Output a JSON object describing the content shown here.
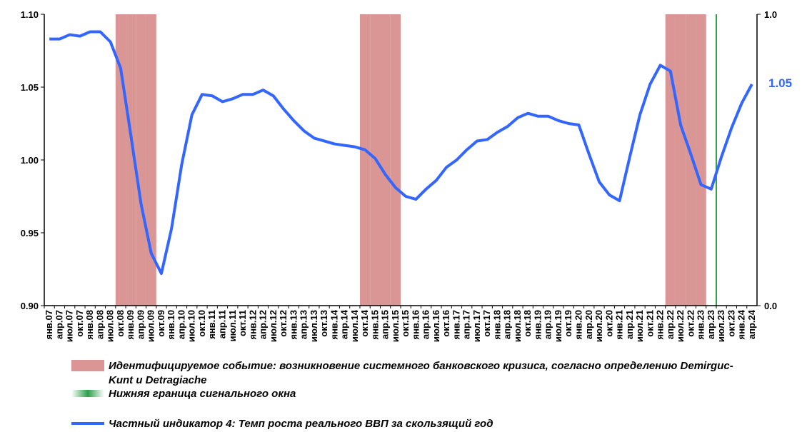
{
  "chart_data": {
    "type": "line",
    "categories": [
      "янв.07",
      "апр.07",
      "июл.07",
      "окт.07",
      "янв.08",
      "апр.08",
      "июл.08",
      "окт.08",
      "янв.09",
      "апр.09",
      "июл.09",
      "окт.09",
      "янв.10",
      "апр.10",
      "июл.10",
      "окт.10",
      "янв.11",
      "апр.11",
      "июл.11",
      "окт.11",
      "янв.12",
      "апр.12",
      "июл.12",
      "окт.12",
      "янв.13",
      "апр.13",
      "июл.13",
      "окт.13",
      "янв.14",
      "апр.14",
      "июл.14",
      "окт.14",
      "янв.15",
      "апр.15",
      "июл.15",
      "окт.15",
      "янв.16",
      "апр.16",
      "июл.16",
      "окт.16",
      "янв.17",
      "апр.17",
      "июл.17",
      "окт.17",
      "янв.18",
      "апр.18",
      "июл.18",
      "окт.18",
      "янв.19",
      "апр.19",
      "июл.19",
      "окт.19",
      "янв.20",
      "апр.20",
      "июл.20",
      "окт.20",
      "янв.21",
      "апр.21",
      "июл.21",
      "окт.21",
      "янв.22",
      "апр.22",
      "июл.22",
      "окт.22",
      "янв.23",
      "апр.23",
      "июл.23",
      "окт.23",
      "янв.24",
      "апр.24"
    ],
    "series": [
      {
        "name": "Идентифицируемое событие: возникновение системного банковского кризиса, согласно определению Demirguc-Kunt и Detragiache",
        "type": "bar",
        "axis": "y2",
        "color": "#d99694",
        "values": [
          0,
          0,
          0,
          0,
          0,
          0,
          0,
          1,
          1,
          1,
          1,
          0,
          0,
          0,
          0,
          0,
          0,
          0,
          0,
          0,
          0,
          0,
          0,
          0,
          0,
          0,
          0,
          0,
          0,
          0,
          0,
          1,
          1,
          1,
          1,
          0,
          0,
          0,
          0,
          0,
          0,
          0,
          0,
          0,
          0,
          0,
          0,
          0,
          0,
          0,
          0,
          0,
          0,
          0,
          0,
          0,
          0,
          0,
          0,
          0,
          0,
          1,
          1,
          1,
          1,
          0,
          0,
          0,
          0,
          0
        ]
      },
      {
        "name": "Нижняя граница сигнального окна",
        "type": "bar",
        "axis": "y2",
        "color": "#2e9e4a",
        "values": [
          0,
          0,
          0,
          0,
          0,
          0,
          0,
          0,
          0,
          0,
          0,
          0,
          0,
          0,
          0,
          0,
          0,
          0,
          0,
          0,
          0,
          0,
          0,
          0,
          0,
          0,
          0,
          0,
          0,
          0,
          0,
          0,
          0,
          0,
          0,
          0,
          0,
          0,
          0,
          0,
          0,
          0,
          0,
          0,
          0,
          0,
          0,
          0,
          0,
          0,
          0,
          0,
          0,
          0,
          0,
          0,
          0,
          0,
          0,
          0,
          0,
          0,
          0,
          0,
          0,
          0,
          1,
          0,
          0,
          0
        ]
      },
      {
        "name": "Частный индикатор 4: Темп роста реального ВВП за скользящий год",
        "type": "line",
        "color": "#3366ff",
        "values": [
          1.083,
          1.083,
          1.086,
          1.085,
          1.088,
          1.088,
          1.081,
          1.063,
          1.017,
          0.97,
          0.936,
          0.922,
          0.953,
          0.997,
          1.031,
          1.045,
          1.044,
          1.04,
          1.042,
          1.045,
          1.045,
          1.048,
          1.044,
          1.035,
          1.027,
          1.02,
          1.015,
          1.013,
          1.011,
          1.01,
          1.009,
          1.007,
          1.001,
          0.99,
          0.981,
          0.975,
          0.973,
          0.98,
          0.986,
          0.995,
          1.0,
          1.007,
          1.013,
          1.014,
          1.019,
          1.023,
          1.029,
          1.032,
          1.03,
          1.03,
          1.027,
          1.025,
          1.024,
          1.004,
          0.985,
          0.976,
          0.972,
          1.002,
          1.031,
          1.052,
          1.065,
          1.061,
          1.024,
          1.004,
          0.983,
          0.98,
          1.002,
          1.022,
          1.039,
          1.052
        ],
        "value_labels": [
          null,
          null,
          null,
          null,
          null,
          null,
          null,
          null,
          null,
          null,
          null,
          null,
          null,
          null,
          null,
          null,
          null,
          null,
          null,
          null,
          null,
          null,
          null,
          null,
          null,
          null,
          null,
          null,
          null,
          null,
          null,
          null,
          null,
          null,
          null,
          null,
          null,
          null,
          null,
          null,
          null,
          null,
          null,
          null,
          null,
          null,
          null,
          null,
          null,
          null,
          null,
          null,
          null,
          null,
          null,
          null,
          null,
          null,
          null,
          null,
          null,
          null,
          null,
          null,
          null,
          null,
          null,
          null,
          null,
          "1.05"
        ]
      }
    ],
    "ylim": [
      0.9,
      1.1
    ],
    "yticks": [
      {
        "value": 0.9,
        "label": "0.90"
      },
      {
        "value": 0.95,
        "label": "0.95"
      },
      {
        "value": 1.0,
        "label": "1.00"
      },
      {
        "value": 1.05,
        "label": "1.05"
      },
      {
        "value": 1.1,
        "label": "1.10"
      }
    ],
    "y2lim": [
      0,
      1
    ],
    "y2ticks": [
      {
        "value": 0,
        "label": "0.0"
      },
      {
        "value": 1,
        "label": "1.0"
      }
    ]
  }
}
